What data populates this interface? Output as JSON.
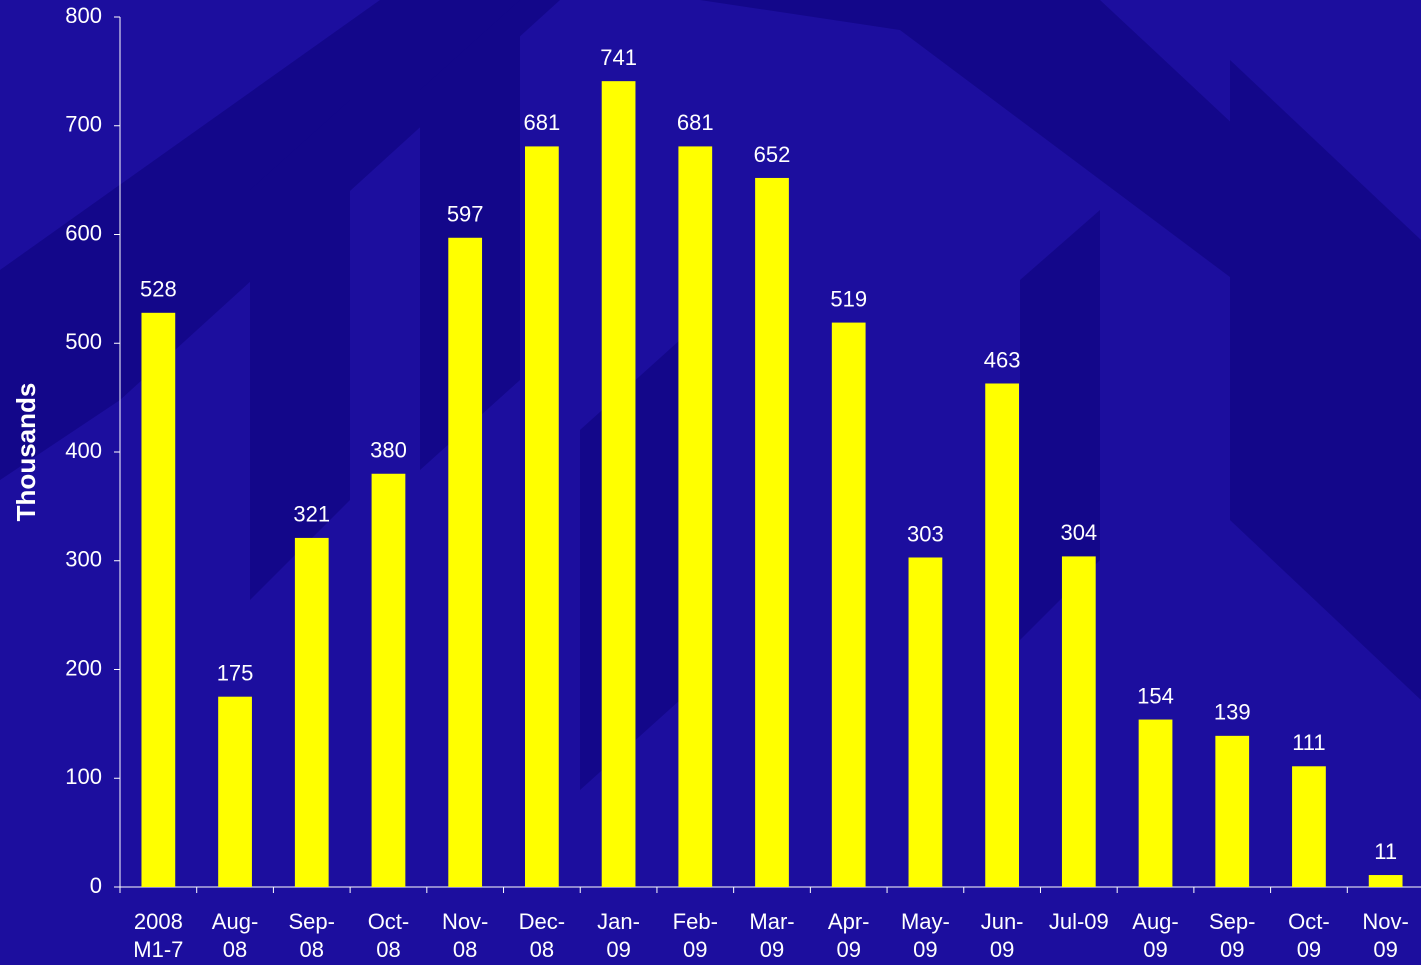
{
  "chart_data": {
    "type": "bar",
    "y_axis_label": "Thousands",
    "categories": [
      "2008 M1-7",
      "Aug-08",
      "Sep-08",
      "Oct-08",
      "Nov-08",
      "Dec-08",
      "Jan-09",
      "Feb-09",
      "Mar-09",
      "Apr-09",
      "May-09",
      "Jun-09",
      "Jul-09",
      "Aug-09",
      "Sep-09",
      "Oct-09",
      "Nov-09"
    ],
    "values": [
      528,
      175,
      321,
      380,
      597,
      681,
      741,
      681,
      652,
      519,
      303,
      463,
      304,
      154,
      139,
      111,
      11
    ],
    "color": "#ffff00",
    "ylim": [
      0,
      800
    ],
    "yticks": [
      0,
      100,
      200,
      300,
      400,
      500,
      600,
      700,
      800
    ],
    "grid": false
  }
}
